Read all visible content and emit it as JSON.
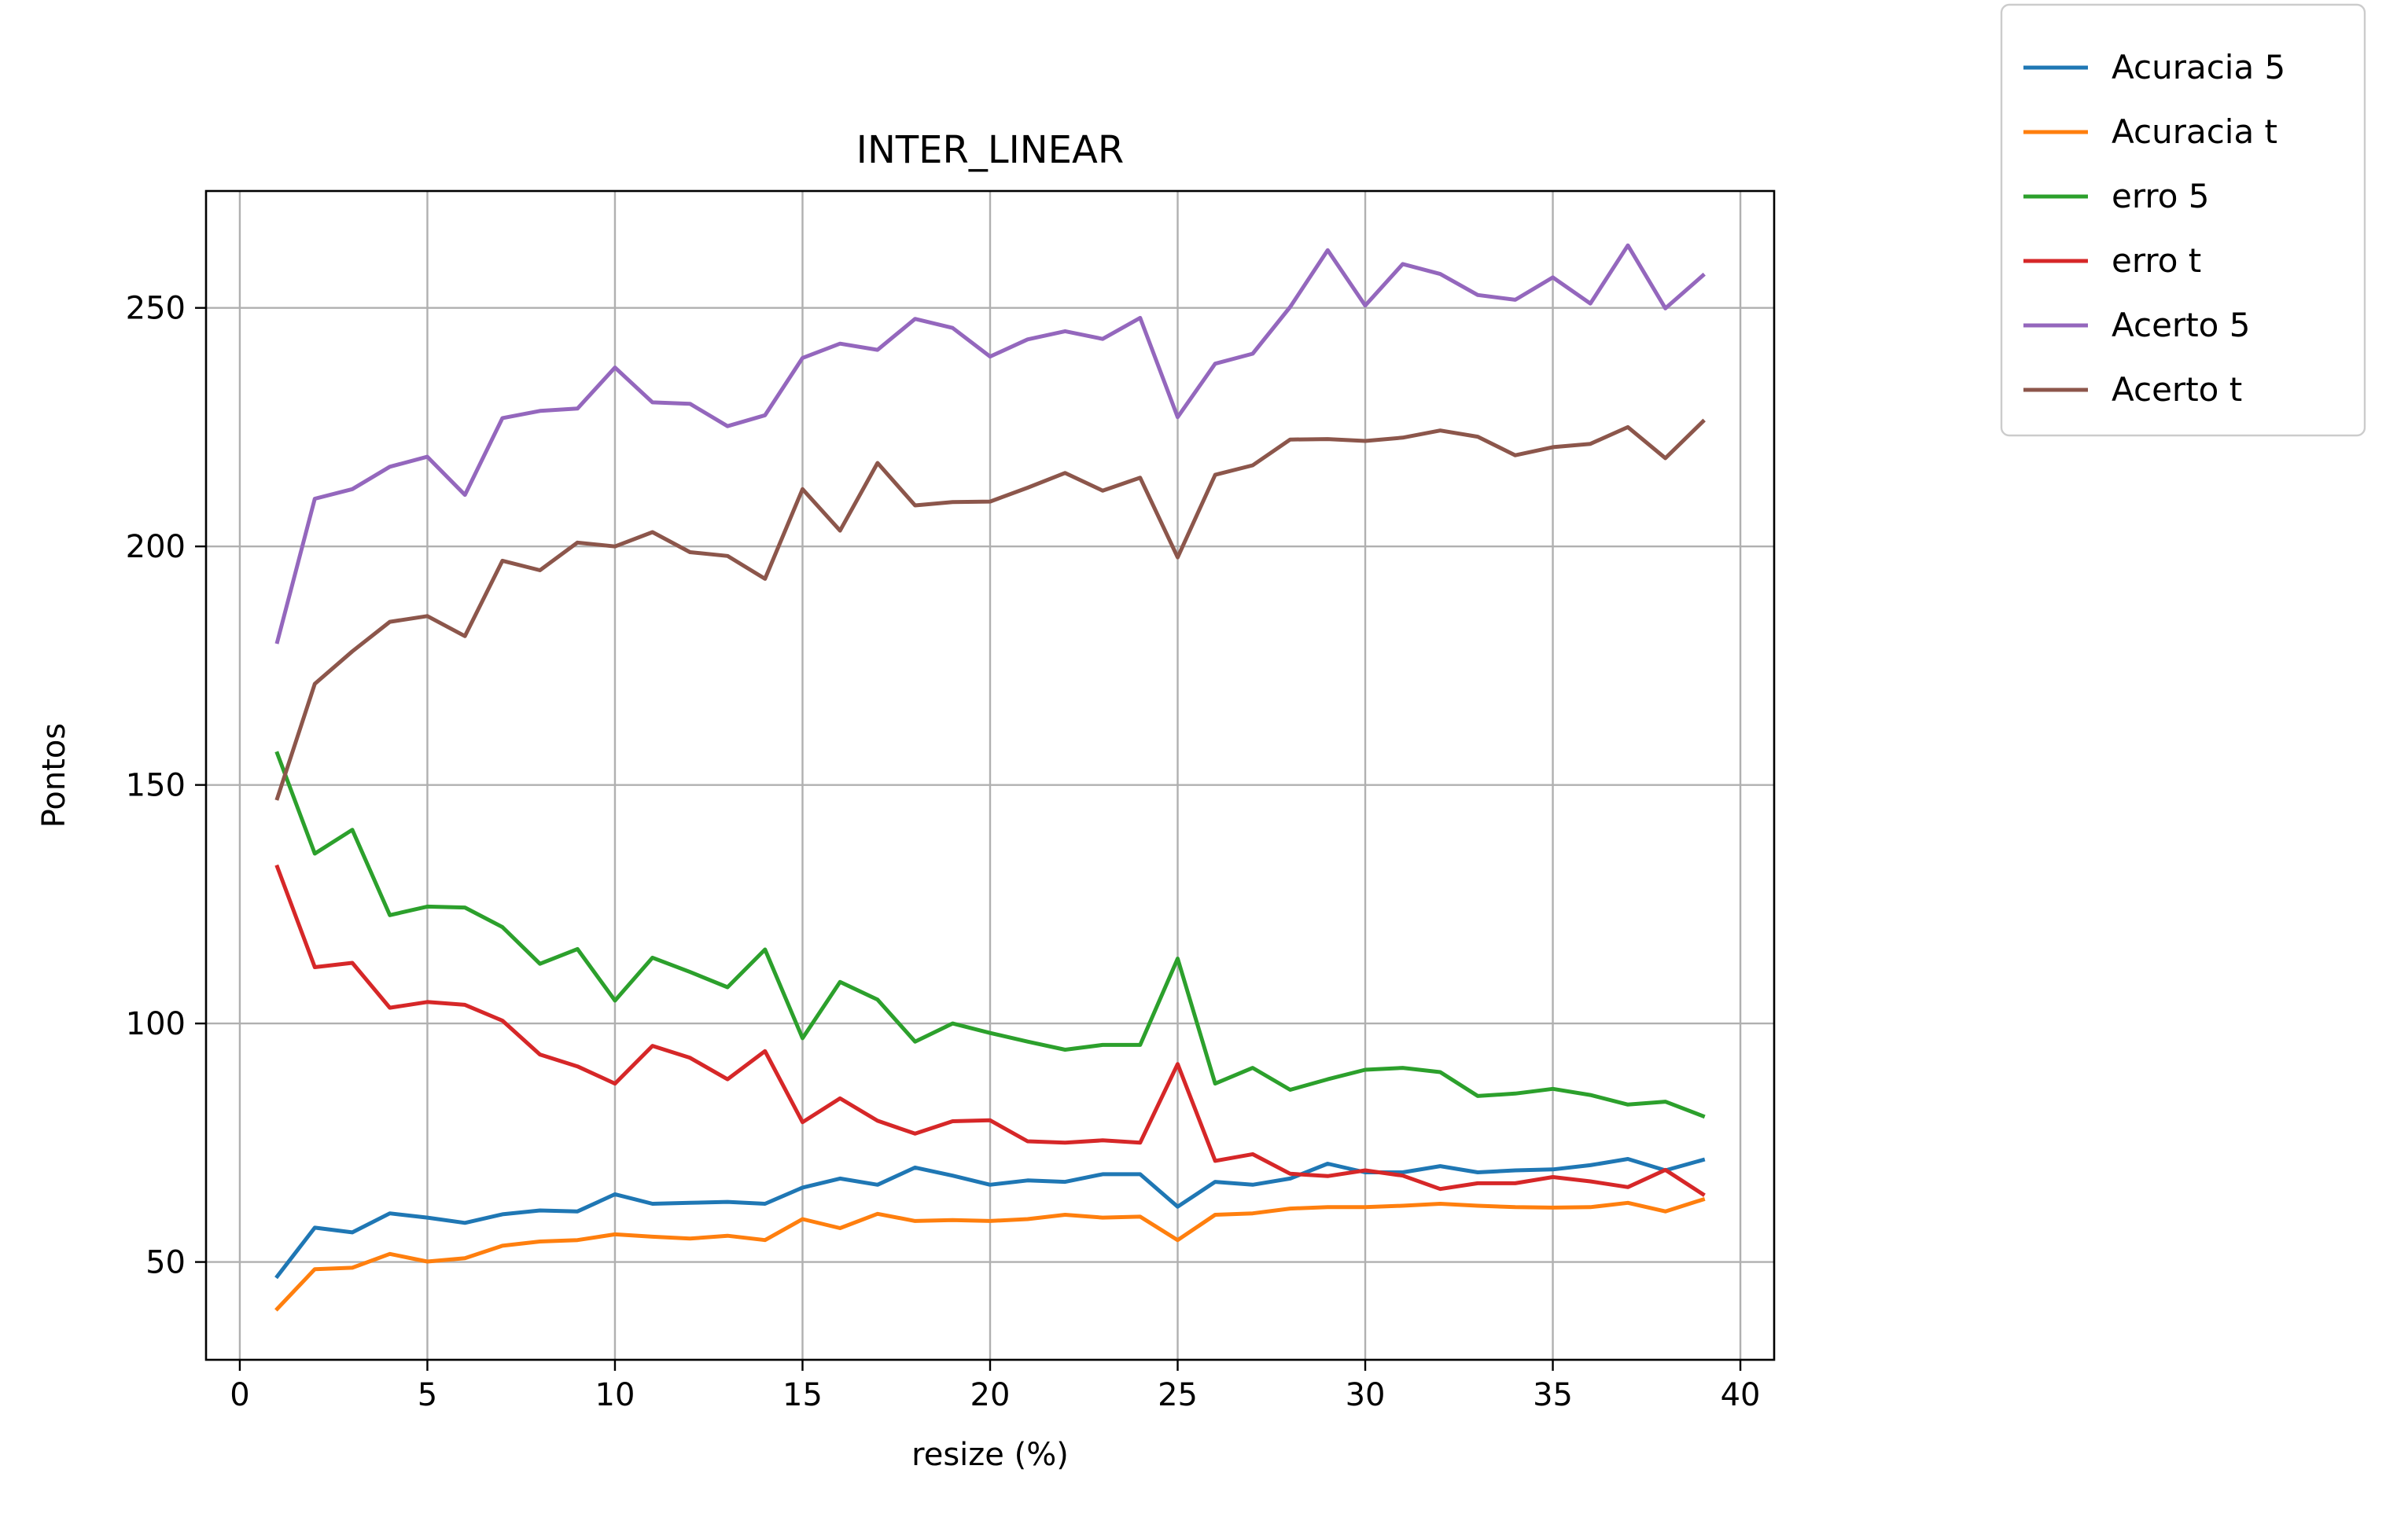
{
  "chart_data": {
    "type": "line",
    "title": "INTER_LINEAR",
    "xlabel": "resize (%)",
    "ylabel": "Pontos",
    "xlim": [
      -0.9,
      40.9
    ],
    "ylim": [
      29.5,
      274.5
    ],
    "xticks": [
      0,
      5,
      10,
      15,
      20,
      25,
      30,
      35,
      40
    ],
    "yticks": [
      50,
      100,
      150,
      200,
      250
    ],
    "grid": true,
    "legend_position": "outside-top-right",
    "x": [
      1,
      2,
      3,
      4,
      5,
      6,
      7,
      8,
      9,
      10,
      11,
      12,
      13,
      14,
      15,
      16,
      17,
      18,
      19,
      20,
      21,
      22,
      23,
      24,
      25,
      26,
      27,
      28,
      29,
      30,
      31,
      32,
      33,
      34,
      35,
      36,
      37,
      38,
      39
    ],
    "series": [
      {
        "name": "Acuracia 5",
        "color": "#1f77b4",
        "values": [
          47,
          57.2,
          56.2,
          60.2,
          59.3,
          58.2,
          60,
          60.8,
          60.6,
          64.2,
          62.2,
          62.4,
          62.6,
          62.2,
          65.6,
          67.5,
          66.2,
          69.8,
          68.1,
          66.2,
          67.1,
          66.8,
          68.4,
          68.4,
          61.6,
          66.8,
          66.2,
          67.5,
          70.6,
          68.8,
          68.8,
          70.1,
          68.8,
          69.2,
          69.4,
          70.3,
          71.6,
          69.2,
          71.4
        ]
      },
      {
        "name": "Acuracia t",
        "color": "#ff7f0e",
        "values": [
          40.2,
          48.5,
          48.8,
          51.7,
          50.1,
          50.8,
          53.4,
          54.3,
          54.6,
          55.8,
          55.3,
          54.9,
          55.5,
          54.6,
          59,
          57.1,
          60.1,
          58.6,
          58.8,
          58.6,
          59,
          59.9,
          59.3,
          59.5,
          54.6,
          59.9,
          60.2,
          61.2,
          61.5,
          61.5,
          61.8,
          62.2,
          61.8,
          61.5,
          61.4,
          61.5,
          62.4,
          60.6,
          63.1
        ]
      },
      {
        "name": "erro 5",
        "color": "#2ca02c",
        "values": [
          156.6,
          135.6,
          140.6,
          122.7,
          124.5,
          124.3,
          120.2,
          112.5,
          115.6,
          104.8,
          113.8,
          110.8,
          107.6,
          115.5,
          96.9,
          108.7,
          105,
          96.2,
          100,
          98,
          96.2,
          94.5,
          95.5,
          95.5,
          113.6,
          87.4,
          90.7,
          86.1,
          88.3,
          90.3,
          90.7,
          89.8,
          84.8,
          85.3,
          86.3,
          85,
          83,
          83.6,
          80.6
        ]
      },
      {
        "name": "erro t",
        "color": "#d62728",
        "values": [
          132.8,
          111.8,
          112.7,
          103.3,
          104.5,
          103.9,
          100.6,
          93.5,
          91,
          87.4,
          95.3,
          92.8,
          88.3,
          94.2,
          79.3,
          84.3,
          79.6,
          76.9,
          79.5,
          79.7,
          75.3,
          75,
          75.5,
          75,
          91.5,
          71.2,
          72.6,
          68.5,
          68,
          69.2,
          68.1,
          65.3,
          66.5,
          66.5,
          67.8,
          66.9,
          65.7,
          69.3,
          64.2
        ]
      },
      {
        "name": "Acerto 5",
        "color": "#9467bd",
        "values": [
          180,
          210,
          212,
          216.7,
          218.8,
          210.8,
          226.9,
          228.4,
          228.9,
          237.5,
          230.2,
          229.9,
          225.2,
          227.5,
          239.5,
          242.5,
          241.2,
          247.7,
          245.8,
          239.8,
          243.4,
          245.1,
          243.5,
          247.9,
          227.1,
          238.3,
          240.4,
          250.2,
          262.1,
          250.5,
          259.2,
          257.1,
          252.7,
          251.7,
          256.4,
          250.9,
          263.1,
          249.9,
          256.8
        ]
      },
      {
        "name": "Acerto t",
        "color": "#8c564b",
        "values": [
          147.2,
          171.2,
          178,
          184.2,
          185.4,
          181.2,
          197,
          195,
          200.8,
          200,
          203,
          198.8,
          198,
          193.2,
          212,
          203.3,
          217.5,
          208.6,
          209.3,
          209.4,
          212.3,
          215.4,
          211.7,
          214.4,
          197.7,
          215,
          217,
          222.4,
          222.5,
          222.1,
          222.8,
          224.3,
          223,
          219.1,
          220.8,
          221.5,
          225,
          218.5,
          226.2
        ]
      }
    ]
  }
}
